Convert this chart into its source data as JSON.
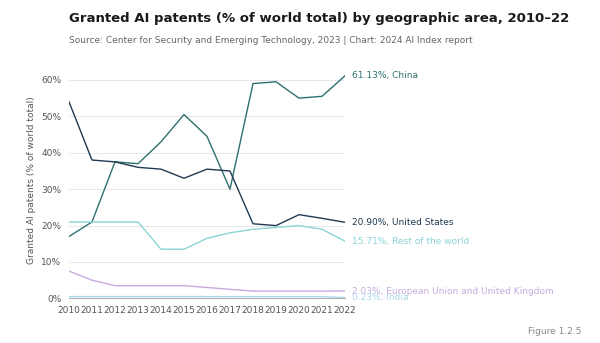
{
  "title": "Granted AI patents (% of world total) by geographic area, 2010–22",
  "source": "Source: Center for Security and Emerging Technology, 2023 | Chart: 2024 AI Index report",
  "figure_label": "Figure 1.2.5",
  "ylabel": "Granted AI patents (% of world total)",
  "years": [
    2010,
    2011,
    2012,
    2013,
    2014,
    2015,
    2016,
    2017,
    2018,
    2019,
    2020,
    2021,
    2022
  ],
  "series": [
    {
      "label": "61.13%, China",
      "color": "#2e7070",
      "data": [
        17.0,
        21.0,
        37.5,
        37.0,
        43.0,
        50.5,
        44.5,
        30.0,
        59.0,
        59.5,
        55.0,
        55.5,
        61.13
      ]
    },
    {
      "label": "20.90%, United States",
      "color": "#1e3a52",
      "data": [
        54.0,
        38.0,
        37.5,
        36.0,
        35.5,
        33.0,
        35.5,
        35.0,
        20.5,
        20.0,
        23.0,
        22.0,
        20.9
      ]
    },
    {
      "label": "15.71%, Rest of the world",
      "color": "#8ad4d4",
      "data": [
        21.0,
        21.0,
        21.0,
        21.0,
        13.5,
        13.5,
        16.5,
        18.0,
        19.0,
        19.5,
        20.0,
        19.0,
        15.71
      ]
    },
    {
      "label": "2.03%, European Union and United Kingdom",
      "color": "#c8aadc",
      "data": [
        7.5,
        5.0,
        3.5,
        3.5,
        3.5,
        3.5,
        3.0,
        2.5,
        2.0,
        2.0,
        2.0,
        2.0,
        2.03
      ]
    },
    {
      "label": "0.23%, India",
      "color": "#a8d8ea",
      "data": [
        0.5,
        0.5,
        0.5,
        0.5,
        0.5,
        0.5,
        0.5,
        0.5,
        0.5,
        0.5,
        0.5,
        0.5,
        0.23
      ]
    }
  ],
  "ylim": [
    0,
    65
  ],
  "yticks": [
    0,
    10,
    20,
    30,
    40,
    50,
    60
  ],
  "background_color": "#ffffff",
  "title_fontsize": 9.5,
  "source_fontsize": 6.5,
  "axis_fontsize": 6.5,
  "label_fontsize": 6.5,
  "ylabel_fontsize": 6.5
}
